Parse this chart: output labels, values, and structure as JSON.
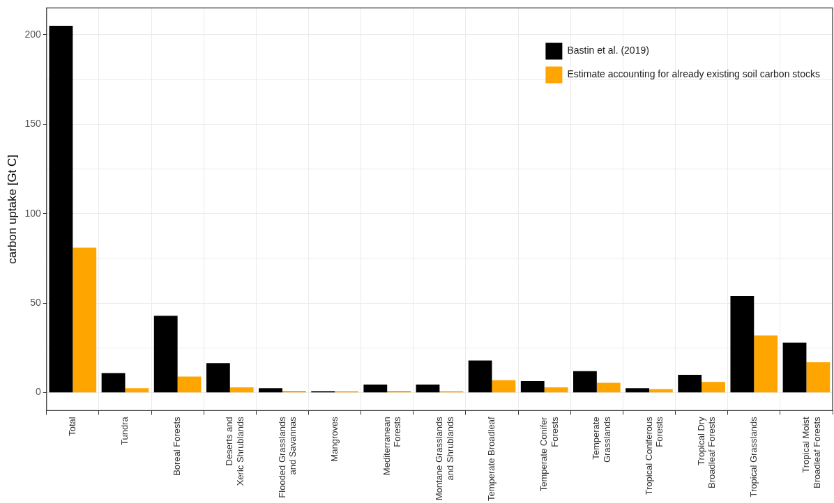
{
  "chart_data": {
    "type": "bar",
    "ylabel": "carbon uptake [Gt C]",
    "categories": [
      "Total",
      "Tundra",
      "Boreal Forests",
      "Deserts and\nXeric Shrublands",
      "Flooded Grasslands\nand Savannas",
      "Mangroves",
      "Mediterranean\nForests",
      "Montane Grasslands\nand Shrublands",
      "Temperate Broadleaf",
      "Temperate Conifer\nForests",
      "Temperate\nGrasslands",
      "Tropical Coniferous\nForests",
      "Tropical Dry\nBroadleaf Forests",
      "Tropical Grasslands",
      "Tropical Moist\nBroadleaf Forests"
    ],
    "series": [
      {
        "name": "Bastin et al. (2019)",
        "color": "#000000",
        "values": [
          205,
          11,
          43,
          16.5,
          2.5,
          0.8,
          4.5,
          4.5,
          18,
          6.5,
          12,
          2.5,
          10,
          54,
          28
        ]
      },
      {
        "name": "Estimate accounting for already existing soil carbon stocks",
        "color": "#ffa500",
        "values": [
          81,
          2.5,
          9,
          3,
          1,
          0.8,
          1,
          0.8,
          7,
          3,
          5.5,
          2,
          6,
          32,
          17
        ]
      }
    ],
    "ylim": [
      -10,
      215
    ],
    "yticks": [
      0,
      {
        "value": 25,
        "label": null
      },
      50,
      {
        "value": 75,
        "label": null
      },
      100,
      {
        "value": 125,
        "label": null
      },
      150,
      {
        "value": 175,
        "label": null
      },
      200
    ],
    "grid": true,
    "legend": "top right"
  }
}
